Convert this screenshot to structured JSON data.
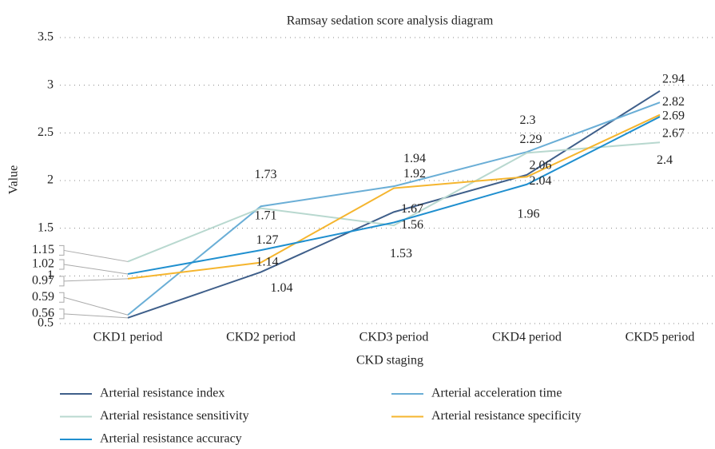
{
  "chart_data": {
    "type": "line",
    "title": "Ramsay sedation score analysis diagram",
    "x_label": "CKD staging",
    "y_label": "Value",
    "categories": [
      "CKD1 period",
      "CKD2 period",
      "CKD3 period",
      "CKD4 period",
      "CKD5 period"
    ],
    "series": [
      {
        "name": "Arterial resistance index",
        "color": "#3f5f8a",
        "values": [
          0.56,
          1.04,
          1.67,
          2.06,
          2.94
        ]
      },
      {
        "name": "Arterial acceleration time",
        "color": "#6aaed6",
        "values": [
          0.59,
          1.73,
          1.94,
          2.3,
          2.82
        ]
      },
      {
        "name": "Arterial resistance sensitivity",
        "color": "#b8d8cf",
        "values": [
          1.15,
          1.71,
          1.53,
          2.29,
          2.4
        ]
      },
      {
        "name": "Arterial resistance specificity",
        "color": "#f5b52e",
        "values": [
          0.97,
          1.14,
          1.92,
          2.04,
          2.69
        ]
      },
      {
        "name": "Arterial resistance accuracy",
        "color": "#1f8fcf",
        "values": [
          1.02,
          1.27,
          1.56,
          1.96,
          2.67
        ]
      }
    ],
    "ylim": [
      0.5,
      3.5
    ],
    "yticks": [
      0.5,
      1,
      1.5,
      2,
      2.5,
      3,
      3.5
    ],
    "grid": true,
    "legend": "bottom"
  }
}
